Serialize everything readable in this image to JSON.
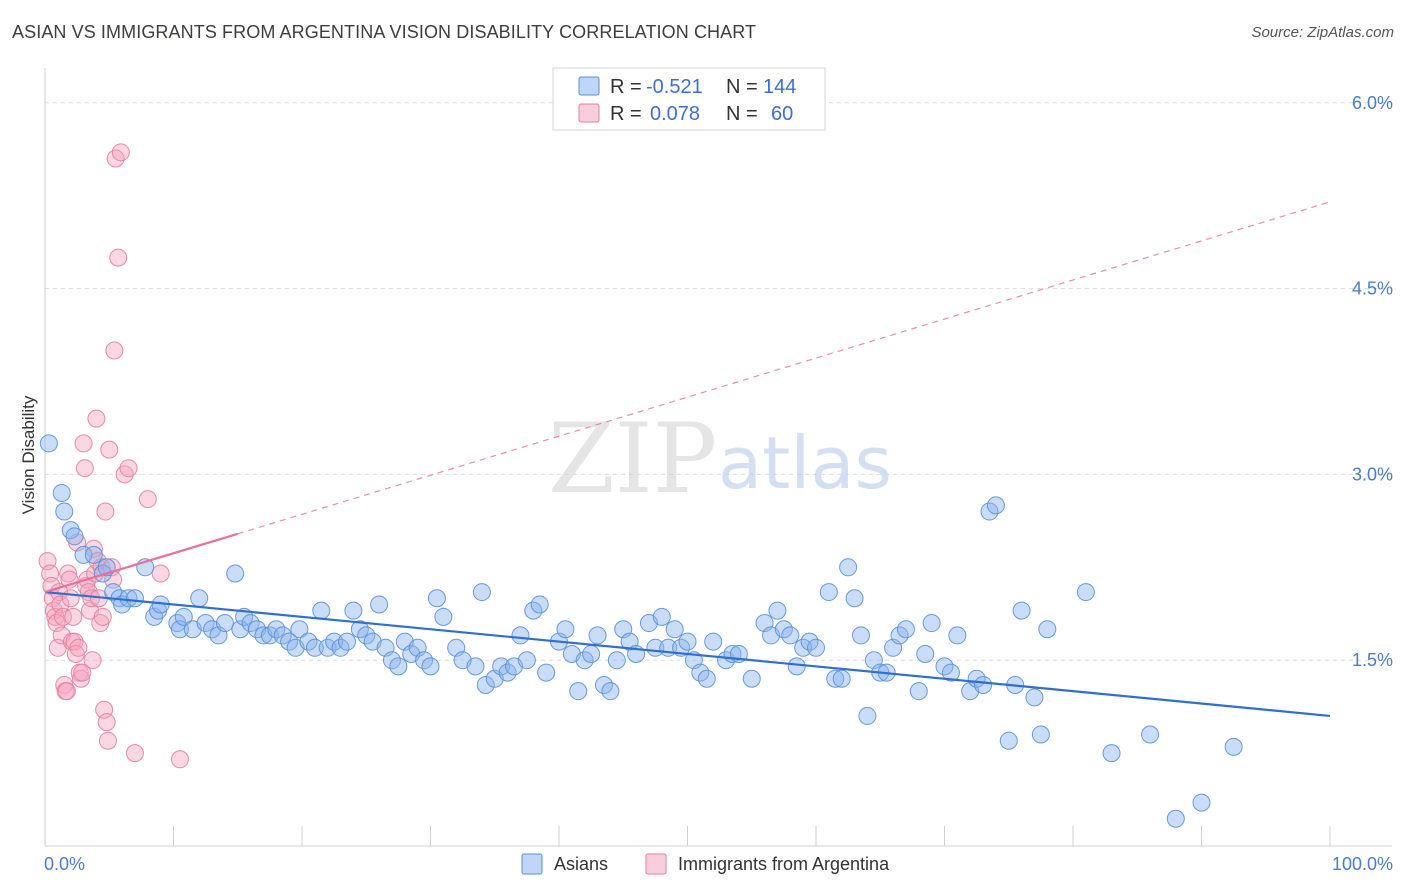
{
  "title": "ASIAN VS IMMIGRANTS FROM ARGENTINA VISION DISABILITY CORRELATION CHART",
  "source": "Source: ZipAtlas.com",
  "watermark": {
    "zip": "ZIP",
    "atlas": "atlas"
  },
  "legend": {
    "rows": [
      {
        "r_label": "R =",
        "r_value": "-0.521",
        "n_label": "N =",
        "n_value": "144",
        "color": "#8ab4ef"
      },
      {
        "r_label": "R =",
        "r_value": "0.078",
        "n_label": "N =",
        "n_value": "60",
        "color": "#f4a6bf"
      }
    ]
  },
  "bottom_legend": [
    {
      "label": "Asians",
      "color": "#8ab4ef"
    },
    {
      "label": "Immigrants from Argentina",
      "color": "#f4a6bf"
    }
  ],
  "chart_data": {
    "type": "scatter",
    "title": "ASIAN VS IMMIGRANTS FROM ARGENTINA VISION DISABILITY CORRELATION CHART",
    "xlabel": "",
    "ylabel": "Vision Disability",
    "xlim": [
      0,
      100
    ],
    "ylim": [
      0,
      6.2
    ],
    "x_tick_labels": [
      "0.0%",
      "100.0%"
    ],
    "y_ticks": [
      1.5,
      3.0,
      4.5,
      6.0
    ],
    "y_tick_labels": [
      "1.5%",
      "3.0%",
      "4.5%",
      "6.0%"
    ],
    "grid": true,
    "series": [
      {
        "name": "Asians",
        "color": "#8ab4ef",
        "stroke": "#5b8fd9",
        "trend": {
          "x": [
            0,
            100
          ],
          "y": [
            2.05,
            1.05
          ],
          "style": "solid",
          "color": "#2f6fd0"
        },
        "points": [
          [
            0.3,
            3.25
          ],
          [
            1.3,
            2.85
          ],
          [
            1.5,
            2.7
          ],
          [
            2,
            2.55
          ],
          [
            2.3,
            2.5
          ],
          [
            3,
            2.35
          ],
          [
            3.8,
            2.35
          ],
          [
            4.5,
            2.2
          ],
          [
            4.8,
            2.25
          ],
          [
            7.8,
            2.25
          ],
          [
            5.3,
            2.05
          ],
          [
            5.8,
            2.0
          ],
          [
            6,
            1.95
          ],
          [
            6.5,
            2.0
          ],
          [
            7,
            2.0
          ],
          [
            8.5,
            1.85
          ],
          [
            8.8,
            1.9
          ],
          [
            9,
            1.95
          ],
          [
            10.3,
            1.8
          ],
          [
            10.5,
            1.75
          ],
          [
            10.8,
            1.85
          ],
          [
            11.5,
            1.75
          ],
          [
            12,
            2.0
          ],
          [
            12.5,
            1.8
          ],
          [
            13,
            1.75
          ],
          [
            13.5,
            1.7
          ],
          [
            14,
            1.8
          ],
          [
            14.8,
            2.2
          ],
          [
            15.2,
            1.75
          ],
          [
            15.5,
            1.85
          ],
          [
            16,
            1.8
          ],
          [
            16.5,
            1.75
          ],
          [
            17,
            1.7
          ],
          [
            17.5,
            1.7
          ],
          [
            18,
            1.75
          ],
          [
            18.5,
            1.7
          ],
          [
            19,
            1.65
          ],
          [
            19.5,
            1.6
          ],
          [
            19.8,
            1.75
          ],
          [
            20.5,
            1.65
          ],
          [
            21,
            1.6
          ],
          [
            21.5,
            1.9
          ],
          [
            22,
            1.6
          ],
          [
            22.5,
            1.65
          ],
          [
            23,
            1.6
          ],
          [
            23.5,
            1.65
          ],
          [
            24,
            1.9
          ],
          [
            24.5,
            1.75
          ],
          [
            25,
            1.7
          ],
          [
            25.5,
            1.65
          ],
          [
            26,
            1.95
          ],
          [
            26.5,
            1.6
          ],
          [
            27,
            1.5
          ],
          [
            27.5,
            1.45
          ],
          [
            28,
            1.65
          ],
          [
            28.5,
            1.55
          ],
          [
            29,
            1.6
          ],
          [
            29.5,
            1.5
          ],
          [
            30,
            1.45
          ],
          [
            30.5,
            2.0
          ],
          [
            31,
            1.85
          ],
          [
            32,
            1.6
          ],
          [
            32.5,
            1.5
          ],
          [
            33.5,
            1.45
          ],
          [
            34,
            2.05
          ],
          [
            34.3,
            1.3
          ],
          [
            35,
            1.35
          ],
          [
            35.5,
            1.45
          ],
          [
            36,
            1.4
          ],
          [
            36.5,
            1.45
          ],
          [
            37,
            1.7
          ],
          [
            37.5,
            1.5
          ],
          [
            38,
            1.9
          ],
          [
            38.5,
            1.95
          ],
          [
            39,
            1.4
          ],
          [
            40,
            1.65
          ],
          [
            40.5,
            1.75
          ],
          [
            41,
            1.55
          ],
          [
            41.5,
            1.25
          ],
          [
            42,
            1.5
          ],
          [
            42.5,
            1.55
          ],
          [
            43,
            1.7
          ],
          [
            43.5,
            1.3
          ],
          [
            44,
            1.25
          ],
          [
            44.5,
            1.5
          ],
          [
            45,
            1.75
          ],
          [
            45.5,
            1.65
          ],
          [
            46,
            1.55
          ],
          [
            47,
            1.8
          ],
          [
            47.5,
            1.6
          ],
          [
            48,
            1.85
          ],
          [
            48.5,
            1.6
          ],
          [
            49,
            1.75
          ],
          [
            49.5,
            1.6
          ],
          [
            50,
            1.65
          ],
          [
            50.5,
            1.5
          ],
          [
            51,
            1.4
          ],
          [
            51.5,
            1.35
          ],
          [
            52,
            1.65
          ],
          [
            53,
            1.5
          ],
          [
            53.5,
            1.55
          ],
          [
            54,
            1.55
          ],
          [
            55,
            1.35
          ],
          [
            56,
            1.8
          ],
          [
            56.5,
            1.7
          ],
          [
            57,
            1.9
          ],
          [
            57.5,
            1.75
          ],
          [
            58,
            1.7
          ],
          [
            58.5,
            1.45
          ],
          [
            59,
            1.6
          ],
          [
            59.5,
            1.65
          ],
          [
            60,
            1.6
          ],
          [
            61,
            2.05
          ],
          [
            61.5,
            1.35
          ],
          [
            62,
            1.35
          ],
          [
            62.5,
            2.25
          ],
          [
            63,
            2.0
          ],
          [
            63.5,
            1.7
          ],
          [
            64,
            1.05
          ],
          [
            64.5,
            1.5
          ],
          [
            65,
            1.4
          ],
          [
            65.5,
            1.4
          ],
          [
            66,
            1.6
          ],
          [
            66.5,
            1.7
          ],
          [
            67,
            1.75
          ],
          [
            68,
            1.25
          ],
          [
            68.5,
            1.55
          ],
          [
            69,
            1.8
          ],
          [
            70,
            1.45
          ],
          [
            70.5,
            1.4
          ],
          [
            71,
            1.7
          ],
          [
            72,
            1.25
          ],
          [
            72.5,
            1.35
          ],
          [
            73,
            1.3
          ],
          [
            73.5,
            2.7
          ],
          [
            74,
            2.75
          ],
          [
            75,
            0.85
          ],
          [
            75.5,
            1.3
          ],
          [
            76,
            1.9
          ],
          [
            77,
            1.2
          ],
          [
            77.5,
            0.9
          ],
          [
            78,
            1.75
          ],
          [
            81,
            2.05
          ],
          [
            83,
            0.75
          ],
          [
            86,
            0.9
          ],
          [
            88,
            0.22
          ],
          [
            90,
            0.35
          ],
          [
            92.5,
            0.8
          ]
        ]
      },
      {
        "name": "Immigrants from Argentina",
        "color": "#f4a6bf",
        "stroke": "#e47ea1",
        "trend": {
          "x": [
            0,
            15
          ],
          "y": [
            2.05,
            2.52
          ],
          "style": "solid",
          "color": "#e8709a",
          "extended": {
            "x": [
              15,
              100
            ],
            "y": [
              2.52,
              5.2
            ],
            "style": "dashed"
          }
        },
        "points": [
          [
            0.2,
            2.3
          ],
          [
            0.4,
            2.2
          ],
          [
            0.5,
            2.1
          ],
          [
            0.6,
            2.0
          ],
          [
            0.7,
            1.9
          ],
          [
            0.8,
            1.85
          ],
          [
            0.9,
            1.8
          ],
          [
            1.0,
            1.6
          ],
          [
            1.1,
            2.05
          ],
          [
            1.2,
            1.95
          ],
          [
            1.3,
            1.7
          ],
          [
            1.4,
            1.85
          ],
          [
            1.5,
            1.3
          ],
          [
            1.6,
            1.25
          ],
          [
            1.7,
            1.25
          ],
          [
            1.8,
            2.2
          ],
          [
            1.9,
            2.15
          ],
          [
            2.0,
            2.0
          ],
          [
            2.1,
            1.65
          ],
          [
            2.2,
            1.85
          ],
          [
            2.3,
            1.65
          ],
          [
            2.4,
            1.55
          ],
          [
            2.5,
            2.45
          ],
          [
            2.6,
            1.6
          ],
          [
            2.7,
            1.4
          ],
          [
            2.8,
            1.35
          ],
          [
            2.9,
            1.4
          ],
          [
            3.0,
            3.25
          ],
          [
            3.1,
            3.05
          ],
          [
            3.2,
            2.1
          ],
          [
            3.3,
            2.15
          ],
          [
            3.4,
            2.05
          ],
          [
            3.5,
            1.9
          ],
          [
            3.6,
            2.0
          ],
          [
            3.7,
            1.5
          ],
          [
            3.8,
            2.4
          ],
          [
            3.9,
            2.2
          ],
          [
            4.0,
            3.45
          ],
          [
            4.1,
            2.3
          ],
          [
            4.2,
            2.0
          ],
          [
            4.3,
            1.8
          ],
          [
            4.4,
            2.25
          ],
          [
            4.5,
            1.85
          ],
          [
            4.6,
            1.1
          ],
          [
            4.7,
            2.7
          ],
          [
            4.8,
            1.0
          ],
          [
            4.9,
            0.85
          ],
          [
            5.0,
            3.2
          ],
          [
            5.2,
            2.25
          ],
          [
            5.3,
            2.15
          ],
          [
            5.4,
            4.0
          ],
          [
            5.5,
            5.55
          ],
          [
            5.7,
            4.75
          ],
          [
            5.9,
            5.6
          ],
          [
            6.2,
            3.0
          ],
          [
            6.5,
            3.05
          ],
          [
            7.0,
            0.75
          ],
          [
            8.0,
            2.8
          ],
          [
            9.0,
            2.2
          ],
          [
            10.5,
            0.7
          ]
        ]
      }
    ]
  }
}
